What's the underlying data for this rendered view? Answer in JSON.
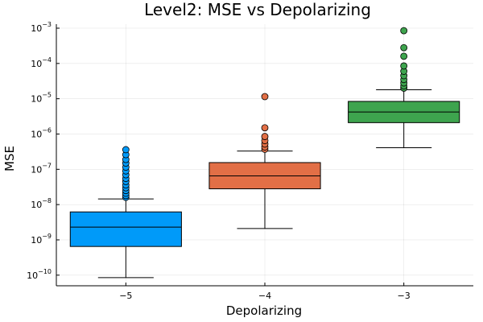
{
  "chart_data": {
    "type": "boxplot",
    "title": "Level2: MSE vs Depolarizing",
    "xlabel": "Depolarizing",
    "ylabel": "MSE",
    "yscale": "log10",
    "ylim": [
      5e-11,
      0.0013
    ],
    "grid": true,
    "legend": "none",
    "x_ticks": [
      {
        "value": -5,
        "label": "−5"
      },
      {
        "value": -4,
        "label": "−4"
      },
      {
        "value": -3,
        "label": "−3"
      }
    ],
    "y_ticks": [
      {
        "value": 1e-10,
        "base": "10",
        "exp": "−10"
      },
      {
        "value": 1e-09,
        "base": "10",
        "exp": "−9"
      },
      {
        "value": 1e-08,
        "base": "10",
        "exp": "−8"
      },
      {
        "value": 1e-07,
        "base": "10",
        "exp": "−7"
      },
      {
        "value": 1e-06,
        "base": "10",
        "exp": "−6"
      },
      {
        "value": 1e-05,
        "base": "10",
        "exp": "−5"
      },
      {
        "value": 0.0001,
        "base": "10",
        "exp": "−4"
      },
      {
        "value": 0.001,
        "base": "10",
        "exp": "−3"
      }
    ],
    "boxes": [
      {
        "x": -5,
        "color": "#009af9",
        "whisker_low": 8.5e-11,
        "q1": 6.5e-10,
        "median": 2.3e-09,
        "q3": 6.2e-09,
        "whisker_high": 1.45e-08,
        "outliers": [
          1.6e-08,
          1.8e-08,
          2.1e-08,
          2.5e-08,
          3e-08,
          3.6e-08,
          4.5e-08,
          5.5e-08,
          7e-08,
          9e-08,
          1.15e-07,
          1.5e-07,
          1.9e-07,
          2.6e-07,
          3.6e-07
        ]
      },
      {
        "x": -4,
        "color": "#e26f46",
        "whisker_low": 2.1e-09,
        "q1": 2.8e-08,
        "median": 6.5e-08,
        "q3": 1.55e-07,
        "whisker_high": 3.3e-07,
        "outliers": [
          3.7e-07,
          4.3e-07,
          5.2e-07,
          6.5e-07,
          8.5e-07,
          1.5e-06,
          1.15e-05
        ]
      },
      {
        "x": -3,
        "color": "#3ea44e",
        "whisker_low": 4.1e-07,
        "q1": 2.1e-06,
        "median": 4.2e-06,
        "q3": 8.4e-06,
        "whisker_high": 1.8e-05,
        "outliers": [
          2e-05,
          2.3e-05,
          2.8e-05,
          3.5e-05,
          4.5e-05,
          6e-05,
          8.5e-05,
          0.00016,
          0.00028,
          0.00085
        ]
      }
    ]
  }
}
